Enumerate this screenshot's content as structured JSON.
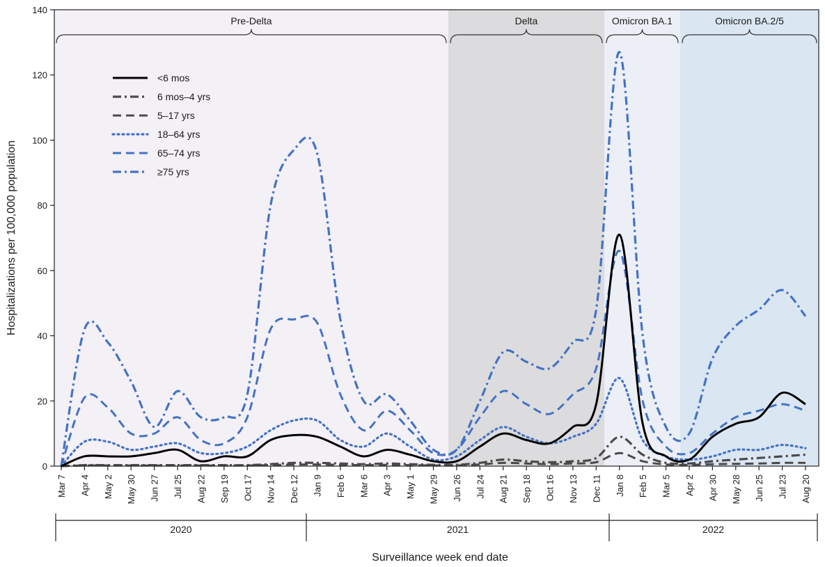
{
  "chart_data": {
    "type": "line",
    "title": "",
    "xlabel": "Surveillance week end date",
    "ylabel": "Hospitalizations per 100,000 population",
    "ylim": [
      0,
      140
    ],
    "yticks": [
      0,
      20,
      40,
      60,
      80,
      100,
      120,
      140
    ],
    "grid": false,
    "legend_position": "top-left",
    "x_tick_labels": [
      "Mar 7",
      "Apr 4",
      "May 2",
      "May 30",
      "Jun 27",
      "Jul 25",
      "Aug 22",
      "Sep 19",
      "Oct 17",
      "Nov 14",
      "Dec 12",
      "Jan 9",
      "Feb 6",
      "Mar 6",
      "Apr 3",
      "May 1",
      "May 29",
      "Jun 26",
      "Jul 24",
      "Aug 21",
      "Sep 18",
      "Oct 16",
      "Nov 13",
      "Dec 11",
      "Jan 8",
      "Feb 5",
      "Mar 5",
      "Apr 2",
      "Apr 30",
      "May 28",
      "Jun 25",
      "Jul 23",
      "Aug 20"
    ],
    "years": [
      "2020",
      "2021",
      "2022"
    ],
    "periods": [
      {
        "label": "Pre-Delta",
        "color": "#f3f0f6"
      },
      {
        "label": "Delta",
        "color": "#dcdcde"
      },
      {
        "label": "Omicron BA.1",
        "color": "#eceff6"
      },
      {
        "label": "Omicron BA.2/5",
        "color": "#dbe6f3"
      }
    ],
    "series": [
      {
        "name": "<6 mos",
        "color": "#000000",
        "style": "solid",
        "values": [
          0,
          3,
          3,
          3,
          4,
          5,
          1.5,
          3,
          3,
          8,
          9.5,
          9,
          6,
          3,
          5,
          3.5,
          1.5,
          1.5,
          6,
          10,
          8,
          7,
          12,
          19,
          71,
          13,
          3,
          2,
          9,
          13,
          15,
          22.5,
          19
        ]
      },
      {
        "name": "6 mos–4 yrs",
        "color": "#4a4a4a",
        "style": "dashdot",
        "values": [
          0,
          0.3,
          0.3,
          0.3,
          0.3,
          0.3,
          0.3,
          0.3,
          0.3,
          0.6,
          1,
          1,
          0.8,
          0.6,
          0.8,
          0.6,
          0.4,
          0.4,
          1,
          2,
          1.5,
          1.2,
          1.5,
          2.5,
          9,
          3.5,
          1,
          0.8,
          1.5,
          2,
          2.5,
          3,
          3.5
        ]
      },
      {
        "name": "5–17 yrs",
        "color": "#4a4a4a",
        "style": "dashed",
        "values": [
          0,
          0.2,
          0.2,
          0.2,
          0.2,
          0.2,
          0.2,
          0.2,
          0.2,
          0.3,
          0.5,
          0.5,
          0.4,
          0.3,
          0.4,
          0.3,
          0.2,
          0.2,
          0.5,
          1,
          0.8,
          0.6,
          0.8,
          1.2,
          4,
          1.5,
          0.5,
          0.4,
          0.6,
          0.7,
          0.8,
          1,
          1
        ]
      },
      {
        "name": "18–64 yrs",
        "color": "#4472c4",
        "style": "dotted",
        "values": [
          0,
          7.5,
          7.5,
          5,
          6,
          7,
          4,
          4,
          6,
          11,
          14,
          14,
          8,
          6,
          10,
          6,
          2,
          3,
          8,
          12,
          9,
          7,
          9,
          13,
          27,
          8,
          3,
          2,
          3,
          5,
          5,
          6.5,
          5.5
        ]
      },
      {
        "name": "65–74 yrs",
        "color": "#4472c4",
        "style": "dashed",
        "values": [
          0,
          21,
          18,
          10,
          10,
          15,
          8,
          7,
          15,
          42,
          45,
          44,
          22,
          11,
          17,
          11,
          4,
          5,
          15,
          23,
          19,
          16,
          22,
          30,
          66,
          20,
          6,
          4,
          10,
          15,
          17,
          19,
          17
        ]
      },
      {
        "name": "≥75 yrs",
        "color": "#4472c4",
        "style": "dashdot",
        "values": [
          0,
          42,
          38,
          26,
          12,
          23,
          15,
          15,
          22,
          80,
          97,
          96,
          45,
          20,
          22,
          14,
          5,
          5,
          20,
          35,
          32,
          30,
          38,
          48,
          127,
          40,
          12,
          10,
          33,
          43,
          48,
          54,
          46
        ]
      }
    ]
  }
}
